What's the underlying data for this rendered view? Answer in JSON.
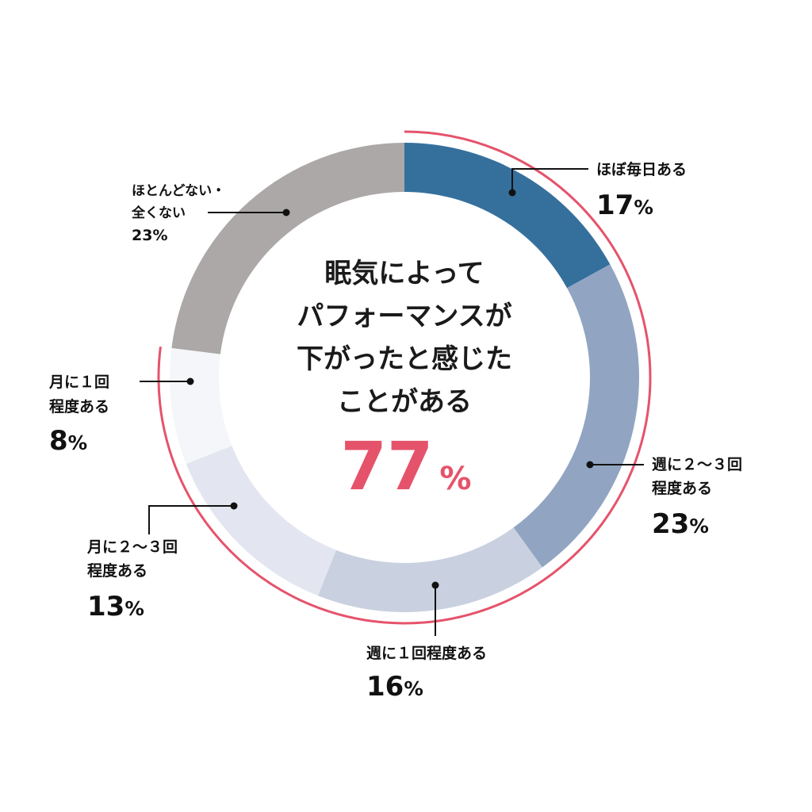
{
  "chart_data": {
    "type": "pie",
    "categories": [
      "ほぼ毎日ある",
      "週に２〜３回程度ある",
      "週に１回程度ある",
      "月に２〜３回程度ある",
      "月に１回程度ある",
      "ほとんどない・全くない"
    ],
    "values": [
      17,
      23,
      16,
      13,
      8,
      23
    ],
    "unit": "%",
    "colors": [
      "#35709d",
      "#91a5c2",
      "#c9d1e0",
      "#e3e6f0",
      "#f4f6f9",
      "#aba8a7"
    ],
    "highlight": {
      "lines": [
        "眠気によって",
        "パフォーマンスが",
        "下がったと感じた",
        "ことがある"
      ],
      "value": "77",
      "unit": "%",
      "color": "#e5536b"
    },
    "labels": [
      {
        "lines": [
          "ほぼ毎日ある"
        ],
        "value": "17",
        "unit": "%"
      },
      {
        "lines": [
          "週に２〜３回",
          "程度ある"
        ],
        "value": "23",
        "unit": "%"
      },
      {
        "lines": [
          "週に１回程度ある"
        ],
        "value": "16",
        "unit": "%"
      },
      {
        "lines": [
          "月に２〜３回",
          "程度ある"
        ],
        "value": "13",
        "unit": "%"
      },
      {
        "lines": [
          "月に１回",
          "程度ある"
        ],
        "value": "8",
        "unit": "%"
      },
      {
        "lines": [
          "ほとんどない・",
          "全くない"
        ],
        "value": "23",
        "unit": "%"
      }
    ]
  }
}
